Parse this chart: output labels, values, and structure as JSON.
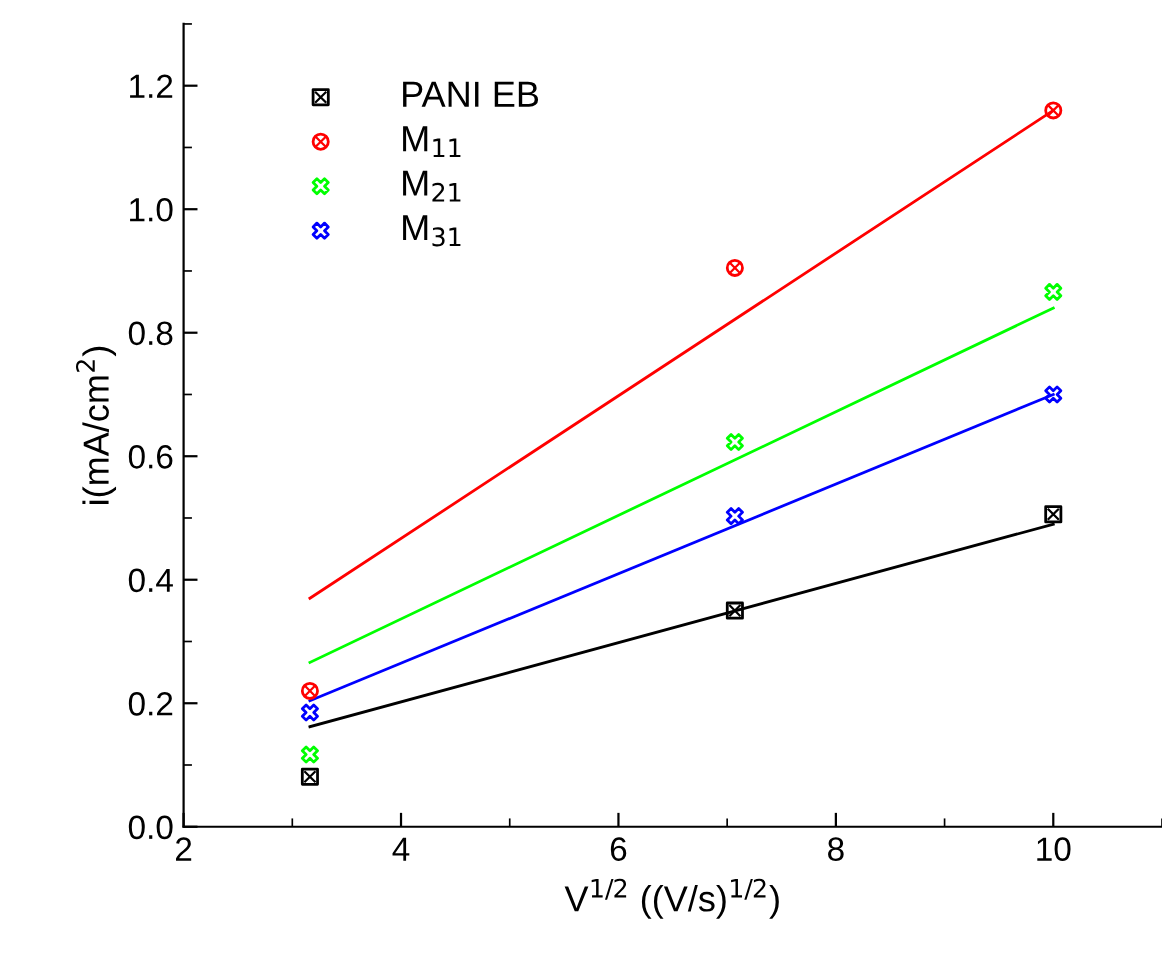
{
  "chart_data": {
    "type": "scatter",
    "xlabel": "V$^{1/2}$ ((V/s)$^{1/2}$)",
    "ylabel": "i(mA/cm$^{2}$)",
    "xlim": [
      2,
      11
    ],
    "ylim": [
      0,
      1.3
    ],
    "xticks": [
      2,
      4,
      6,
      8,
      10
    ],
    "yticks": [
      {
        "value": 0,
        "label": "0.0"
      },
      0.2,
      0.4,
      0.6,
      0.8,
      {
        "value": 1,
        "label": "1.0"
      },
      1.2
    ],
    "legend": "top left",
    "grid": false,
    "series": [
      {
        "name": "PANI EB",
        "color": "#000000",
        "marker": "square",
        "x": [
          3.162,
          7.071,
          10
        ],
        "values": [
          0.081,
          0.35,
          0.506
        ]
      },
      {
        "name": "M$_{11}$",
        "color": "#ff0000",
        "marker": "circle",
        "x": [
          3.162,
          7.071,
          10
        ],
        "values": [
          0.22,
          0.905,
          1.16
        ]
      },
      {
        "name": "M$_{21}$",
        "color": "#00ff00",
        "marker": "cross",
        "x": [
          3.162,
          7.071,
          10
        ],
        "values": [
          0.117,
          0.623,
          0.866
        ]
      },
      {
        "name": "M$_{31}$",
        "color": "#0000ff",
        "marker": "cross",
        "x": [
          3.162,
          7.071,
          10
        ],
        "values": [
          0.185,
          0.503,
          0.7
        ]
      },
      {
        "type": "line",
        "color": "#000000",
        "x": [
          3.162,
          10
        ],
        "values": [
          0.162,
          0.49
        ]
      },
      {
        "type": "line",
        "color": "#ff0000",
        "x": [
          3.162,
          10
        ],
        "values": [
          0.37,
          1.16
        ]
      },
      {
        "type": "line",
        "color": "#00ff00",
        "x": [
          3.162,
          10
        ],
        "values": [
          0.266,
          0.84
        ]
      },
      {
        "type": "line",
        "color": "#0000ff",
        "x": [
          3.162,
          10
        ],
        "values": [
          0.204,
          0.7
        ]
      }
    ]
  }
}
